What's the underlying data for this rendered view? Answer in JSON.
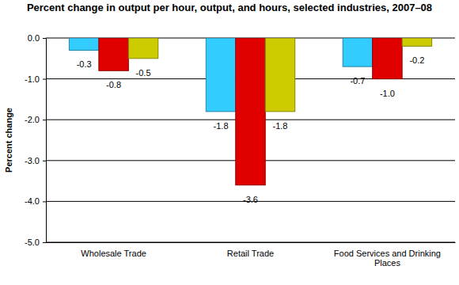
{
  "chart_data": {
    "type": "bar",
    "title": "Percent change in output per hour, output, and hours, selected industries, 2007–08",
    "y_label": "Percent change",
    "categories": [
      "Wholesale Trade",
      "Retail Trade",
      "Food Services and Drinking Places"
    ],
    "series": [
      {
        "color": "#33ccff",
        "values": [
          -0.3,
          -1.8,
          -0.7
        ],
        "value_labels": [
          "-0.3",
          "-1.8",
          "-0.7"
        ]
      },
      {
        "color": "#e00000",
        "values": [
          -0.8,
          -3.6,
          -1.0
        ],
        "value_labels": [
          "-0.8",
          "-3.6",
          "-1.0"
        ]
      },
      {
        "color": "#cccc00",
        "values": [
          -0.5,
          -1.8,
          -0.2
        ],
        "value_labels": [
          "-0.5",
          "-1.8",
          "-0.2"
        ]
      }
    ],
    "ylim": [
      -5,
      0
    ],
    "yticks": [
      {
        "value": -5,
        "label": "-5.0"
      },
      {
        "value": -4,
        "label": "-4.0"
      },
      {
        "value": -3,
        "label": "-3.0"
      },
      {
        "value": -2,
        "label": "-2.0"
      },
      {
        "value": -1,
        "label": "-1.0"
      },
      {
        "value": 0,
        "label": "0.0"
      }
    ],
    "grid": true,
    "data_labels": true
  }
}
